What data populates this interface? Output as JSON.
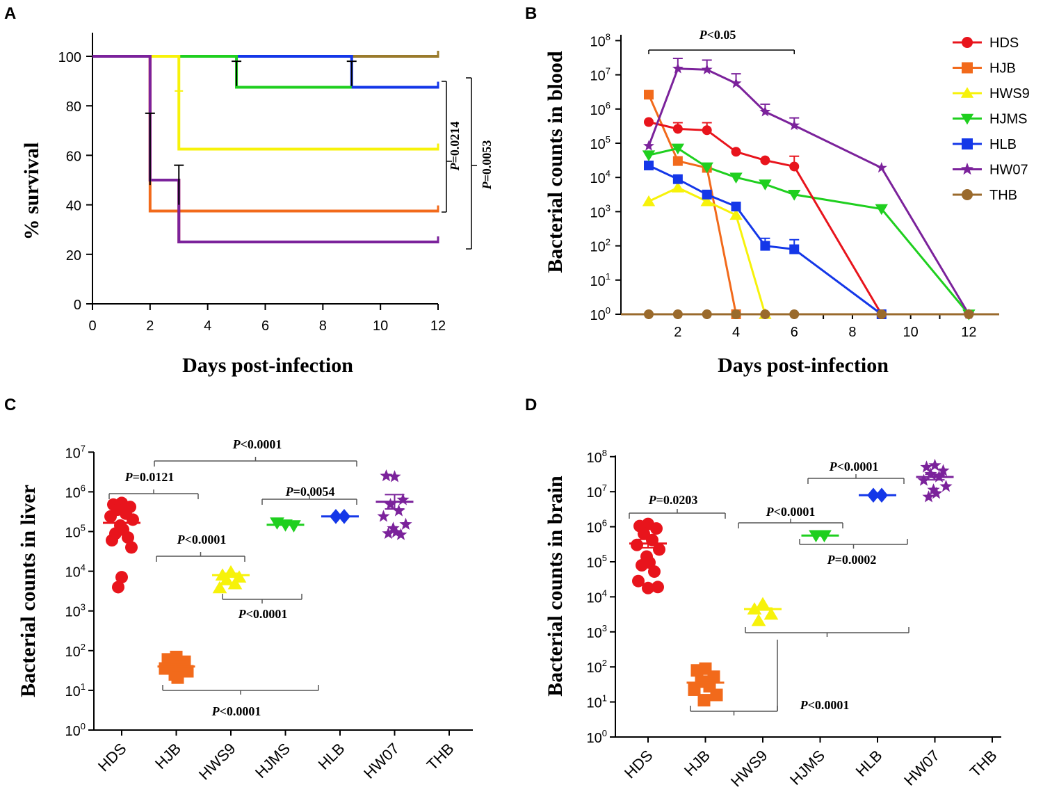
{
  "colors": {
    "HDS": "#e8141c",
    "HJB": "#f26a1b",
    "HWS9": "#f7f20a",
    "HJMS": "#1fcf1f",
    "HLB": "#1437e8",
    "HW07": "#7b229b",
    "THB": "#9a7b2c",
    "THB_marker": "#9a6a2c"
  },
  "chart_data": [
    {
      "panel": "A",
      "type": "line",
      "subtype": "kaplan-meier",
      "xlabel": "Days post-infection",
      "ylabel": "% survival",
      "xlim": [
        0,
        12
      ],
      "ylim": [
        0,
        110
      ],
      "xticks": [
        "0",
        "2",
        "4",
        "6",
        "8",
        "10",
        "12"
      ],
      "yticks": [
        "0",
        "20",
        "40",
        "60",
        "80",
        "100"
      ],
      "series": [
        {
          "name": "THB",
          "points": [
            [
              0,
              100
            ],
            [
              12,
              100
            ]
          ]
        },
        {
          "name": "HLB",
          "points": [
            [
              0,
              100
            ],
            [
              5,
              100
            ],
            [
              9,
              100
            ],
            [
              9,
              87.5
            ],
            [
              12,
              87.5
            ]
          ]
        },
        {
          "name": "HJMS",
          "points": [
            [
              0,
              100
            ],
            [
              5,
              100
            ],
            [
              5,
              87.5
            ],
            [
              9,
              87.5
            ]
          ]
        },
        {
          "name": "HWS9",
          "points": [
            [
              0,
              100
            ],
            [
              3,
              100
            ],
            [
              3,
              62.5
            ],
            [
              12,
              62.5
            ]
          ]
        },
        {
          "name": "HJB",
          "points": [
            [
              0,
              100
            ],
            [
              2,
              100
            ],
            [
              2,
              37.5
            ],
            [
              12,
              37.5
            ]
          ]
        },
        {
          "name": "HDS",
          "points": [
            [
              0,
              100
            ],
            [
              2,
              100
            ],
            [
              2,
              50
            ],
            [
              3,
              50
            ],
            [
              3,
              25
            ],
            [
              12,
              25
            ]
          ]
        },
        {
          "name": "HW07",
          "points": [
            [
              0,
              100
            ],
            [
              2,
              100
            ],
            [
              2,
              50
            ],
            [
              3,
              50
            ],
            [
              3,
              25
            ],
            [
              12,
              25
            ]
          ]
        }
      ],
      "annotations": [
        {
          "text_i": "P",
          "text": "=0.0214",
          "from": 87.5,
          "to": 37.5
        },
        {
          "text_i": "P",
          "text": "=0.0053",
          "from": 87.5,
          "to": 25
        }
      ]
    },
    {
      "panel": "B",
      "type": "line",
      "scale_y": "log10",
      "xlabel": "Days post-infection",
      "ylabel": "Bacterial counts in blood",
      "xlim": [
        0,
        12.9
      ],
      "ylim_exp": [
        0,
        8
      ],
      "xticks": [
        "2",
        "4",
        "6",
        "8",
        "10",
        "12"
      ],
      "yticks": [
        {
          "base": "10",
          "exp": "0"
        },
        {
          "base": "10",
          "exp": "1"
        },
        {
          "base": "10",
          "exp": "2"
        },
        {
          "base": "10",
          "exp": "3"
        },
        {
          "base": "10",
          "exp": "4"
        },
        {
          "base": "10",
          "exp": "5"
        },
        {
          "base": "10",
          "exp": "6"
        },
        {
          "base": "10",
          "exp": "7"
        },
        {
          "base": "10",
          "exp": "8"
        }
      ],
      "legend": [
        "HDS",
        "HJB",
        "HWS9",
        "HJMS",
        "HLB",
        "HW07",
        "THB"
      ],
      "series": [
        {
          "name": "HJB",
          "marker": "square",
          "x": [
            1,
            2,
            3,
            4
          ],
          "log10y": [
            6.42,
            4.48,
            4.28,
            0
          ],
          "err": [
            0.12,
            0,
            0.1,
            0
          ]
        },
        {
          "name": "HWS9",
          "marker": "triangle-up",
          "x": [
            1,
            2,
            3,
            4,
            5
          ],
          "log10y": [
            3.3,
            3.7,
            3.3,
            2.9,
            0
          ],
          "err": [
            0,
            0,
            0,
            0,
            0
          ]
        },
        {
          "name": "HLB",
          "marker": "square",
          "x": [
            1,
            2,
            3,
            4,
            5,
            6,
            9
          ],
          "log10y": [
            4.35,
            3.95,
            3.5,
            3.15,
            2.0,
            1.9,
            0
          ],
          "err": [
            0,
            0,
            0,
            0,
            0.22,
            0.28,
            0
          ]
        },
        {
          "name": "HJMS",
          "marker": "triangle-down",
          "x": [
            1,
            2,
            3,
            4,
            5,
            6,
            9,
            12
          ],
          "log10y": [
            4.65,
            4.85,
            4.3,
            4.0,
            3.8,
            3.5,
            3.08,
            0
          ],
          "err": [
            0,
            0,
            0,
            0,
            0,
            0,
            0.1,
            0
          ]
        },
        {
          "name": "HDS",
          "marker": "circle",
          "x": [
            1,
            2,
            3,
            4,
            5,
            6,
            9
          ],
          "log10y": [
            5.62,
            5.42,
            5.38,
            4.75,
            4.5,
            4.32,
            0
          ],
          "err": [
            0,
            0.18,
            0.22,
            0,
            0,
            0.3,
            0
          ]
        },
        {
          "name": "HW07",
          "marker": "star",
          "x": [
            1,
            2,
            3,
            4,
            5,
            6,
            9,
            12
          ],
          "log10y": [
            4.92,
            7.18,
            7.15,
            6.75,
            5.92,
            5.52,
            4.28,
            0
          ],
          "err": [
            0,
            0.3,
            0.28,
            0.28,
            0.22,
            0.22,
            0,
            0
          ]
        },
        {
          "name": "THB",
          "marker": "circle",
          "x": [
            1,
            2,
            3,
            4,
            5,
            6,
            9,
            12
          ],
          "log10y": [
            0,
            0,
            0,
            0,
            0,
            0,
            0,
            0
          ],
          "err": [
            0,
            0,
            0,
            0,
            0,
            0,
            0,
            0
          ]
        }
      ],
      "annotations": [
        {
          "text_i": "P",
          "text": "<0.05",
          "x_from": 1,
          "x_to": 6
        }
      ]
    },
    {
      "panel": "C",
      "type": "scatter",
      "scale_y": "log10",
      "ylabel": "Bacterial counts in liver",
      "categories": [
        "HDS",
        "HJB",
        "HWS9",
        "HJMS",
        "HLB",
        "HW07",
        "THB"
      ],
      "ylim_exp": [
        0,
        7
      ],
      "yticks": [
        {
          "base": "10",
          "exp": "0"
        },
        {
          "base": "10",
          "exp": "1"
        },
        {
          "base": "10",
          "exp": "2"
        },
        {
          "base": "10",
          "exp": "3"
        },
        {
          "base": "10",
          "exp": "4"
        },
        {
          "base": "10",
          "exp": "5"
        },
        {
          "base": "10",
          "exp": "6"
        },
        {
          "base": "10",
          "exp": "7"
        }
      ],
      "groups": [
        {
          "name": "HDS",
          "marker": "circle",
          "mean": 5.22,
          "sem": 0,
          "points": [
            5.72,
            5.68,
            5.62,
            5.55,
            5.45,
            5.38,
            5.3,
            5.15,
            5.05,
            4.95,
            4.85,
            4.78,
            4.6,
            3.85,
            3.6
          ]
        },
        {
          "name": "HJB",
          "marker": "square",
          "mean": 1.6,
          "sem": 0.05,
          "points": [
            1.84,
            1.78,
            1.72,
            1.68,
            1.6,
            1.55,
            1.48,
            1.4,
            1.32
          ]
        },
        {
          "name": "HWS9",
          "marker": "triangle-up",
          "mean": 3.9,
          "sem": 0.05,
          "points": [
            3.98,
            3.9,
            3.85,
            3.78,
            3.68,
            3.58
          ]
        },
        {
          "name": "HJMS",
          "marker": "triangle-down",
          "mean": 5.17,
          "sem": 0,
          "points": [
            5.22,
            5.17,
            5.15
          ]
        },
        {
          "name": "HLB",
          "marker": "diamond",
          "mean": 5.38,
          "sem": 0,
          "points": [
            5.38,
            5.38
          ]
        },
        {
          "name": "HW07",
          "marker": "star",
          "mean": 5.75,
          "sem": 0.18,
          "points": [
            6.38,
            6.4,
            5.8,
            5.68,
            5.52,
            5.38,
            5.18,
            5.08,
            4.98,
            4.95,
            4.92
          ]
        },
        {
          "name": "THB",
          "marker": "none",
          "mean": null,
          "points": []
        }
      ],
      "annotations": [
        {
          "text_i": "P",
          "text": "<0.0001",
          "between": [
            "HDS",
            "HW07"
          ]
        },
        {
          "text_i": "P",
          "text": "=0.0121",
          "between": [
            "HDS",
            "HJB"
          ]
        },
        {
          "text_i": "P",
          "text": "=0.0054",
          "between": [
            "HJMS",
            "HLB"
          ]
        },
        {
          "text_i": "P",
          "text": "<0.0001",
          "between": [
            "HJB",
            "HWS9"
          ]
        },
        {
          "text_i": "P",
          "text": "<0.0001",
          "between": [
            "HWS9",
            "HJMS"
          ]
        },
        {
          "text_i": "P",
          "text": "<0.0001",
          "between": [
            "HJB",
            "HLB"
          ]
        }
      ]
    },
    {
      "panel": "D",
      "type": "scatter",
      "scale_y": "log10",
      "ylabel": "Bacterial counts in brain",
      "categories": [
        "HDS",
        "HJB",
        "HWS9",
        "HJMS",
        "HLB",
        "HW07",
        "THB"
      ],
      "ylim_exp": [
        0,
        8
      ],
      "yticks": [
        {
          "base": "10",
          "exp": "0"
        },
        {
          "base": "10",
          "exp": "1"
        },
        {
          "base": "10",
          "exp": "2"
        },
        {
          "base": "10",
          "exp": "3"
        },
        {
          "base": "10",
          "exp": "4"
        },
        {
          "base": "10",
          "exp": "5"
        },
        {
          "base": "10",
          "exp": "6"
        },
        {
          "base": "10",
          "exp": "7"
        },
        {
          "base": "10",
          "exp": "8"
        }
      ],
      "groups": [
        {
          "name": "HDS",
          "marker": "circle",
          "mean": 5.52,
          "sem": 0.12,
          "points": [
            6.08,
            6.02,
            5.95,
            5.8,
            5.62,
            5.48,
            5.35,
            5.15,
            4.98,
            4.9,
            4.72,
            4.45,
            4.28,
            4.25
          ]
        },
        {
          "name": "HJB",
          "marker": "square",
          "mean": 1.55,
          "sem": 0.12,
          "points": [
            1.95,
            1.9,
            1.72,
            1.58,
            1.45,
            1.35,
            1.2,
            1.05
          ]
        },
        {
          "name": "HWS9",
          "marker": "triangle-up",
          "mean": 3.65,
          "sem": 0.03,
          "points": [
            3.8,
            3.65,
            3.5,
            3.32
          ]
        },
        {
          "name": "HJMS",
          "marker": "triangle-down",
          "mean": 5.75,
          "sem": 0,
          "points": [
            5.75,
            5.75
          ]
        },
        {
          "name": "HLB",
          "marker": "diamond",
          "mean": 6.9,
          "sem": 0,
          "points": [
            6.9,
            6.9
          ]
        },
        {
          "name": "HW07",
          "marker": "star",
          "mean": 7.42,
          "sem": 0.08,
          "points": [
            7.75,
            7.7,
            7.6,
            7.5,
            7.42,
            7.32,
            7.15,
            7.05,
            6.95,
            6.85
          ]
        },
        {
          "name": "THB",
          "marker": "none",
          "mean": null,
          "points": []
        }
      ],
      "annotations": [
        {
          "text_i": "P",
          "text": "=0.0203",
          "between": [
            "HDS",
            "HJB"
          ]
        },
        {
          "text_i": "P",
          "text": "<0.0001",
          "between": [
            "HJMS",
            "HW07"
          ]
        },
        {
          "text_i": "P",
          "text": "<0.0001",
          "between": [
            "HWS9",
            "HLB"
          ]
        },
        {
          "text_i": "P",
          "text": "=0.0002",
          "between": [
            "HJMS",
            "HW07"
          ]
        },
        {
          "text_i": "P",
          "text": "<0.0001",
          "between": [
            "HJB",
            "HW07"
          ]
        }
      ]
    }
  ]
}
